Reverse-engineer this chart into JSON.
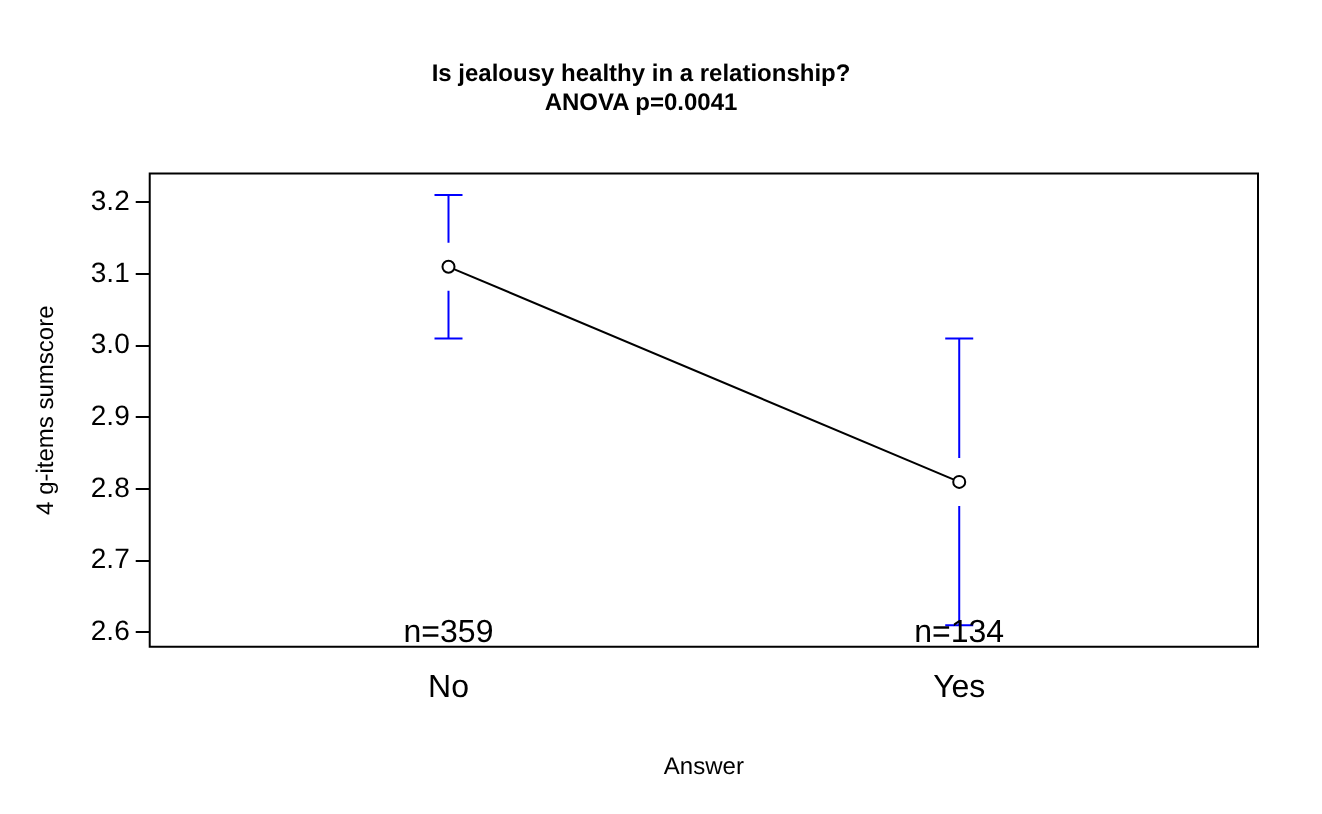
{
  "chart_data": {
    "type": "line",
    "title": "Is jealousy healthy in a relationship?",
    "subtitle": "ANOVA p=0.0041",
    "xlabel": "Answer",
    "ylabel": "4 g-items sumscore",
    "categories": [
      "No",
      "Yes"
    ],
    "series": [
      {
        "color": "#000000",
        "values": [
          3.11,
          2.81
        ],
        "errors": [
          0.1,
          0.2
        ]
      }
    ],
    "ylim": [
      2.58,
      3.24
    ],
    "yticks": [
      2.6,
      2.7,
      2.8,
      2.9,
      {
        "value": 3,
        "label": "3.0"
      },
      3.1,
      3.2
    ],
    "annotations": [
      "n=359",
      "n=134"
    ],
    "grid": false,
    "legend": false,
    "marker": "circle",
    "line_style": "solid"
  }
}
